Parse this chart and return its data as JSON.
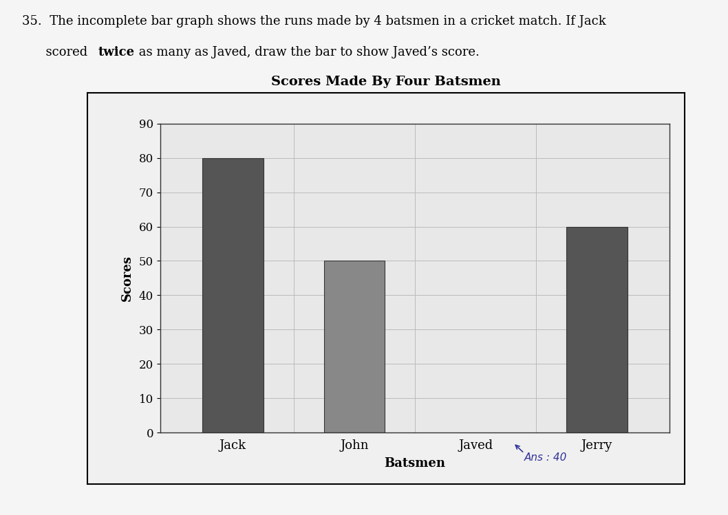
{
  "title": "Scores Made By Four Batsmen",
  "xlabel": "Batsmen",
  "ylabel": "Scores",
  "batsmen": [
    "Jack",
    "John",
    "Javed",
    "Jerry"
  ],
  "scores": [
    80,
    50,
    0,
    60
  ],
  "bar_colors": [
    "#555555",
    "#888888",
    "#888888",
    "#555555"
  ],
  "ylim": [
    0,
    90
  ],
  "yticks": [
    0,
    10,
    20,
    30,
    40,
    50,
    60,
    70,
    80,
    90
  ],
  "bg_color": "#ffffff",
  "chart_bg": "#e8e8e8",
  "outer_bg": "#f5f5f5",
  "title_fontsize": 14,
  "label_fontsize": 13,
  "tick_fontsize": 12,
  "question_line1": "35.  The incomplete bar graph shows the runs made by 4 batsmen in a cricket match. If Jack",
  "question_line2_pre": "      scored ",
  "question_line2_bold": "twice",
  "question_line2_post": " as many as Javed, draw the bar to show Javed’s score.",
  "handwritten_ans": "Ans : 40",
  "handwritten_arrow": true
}
